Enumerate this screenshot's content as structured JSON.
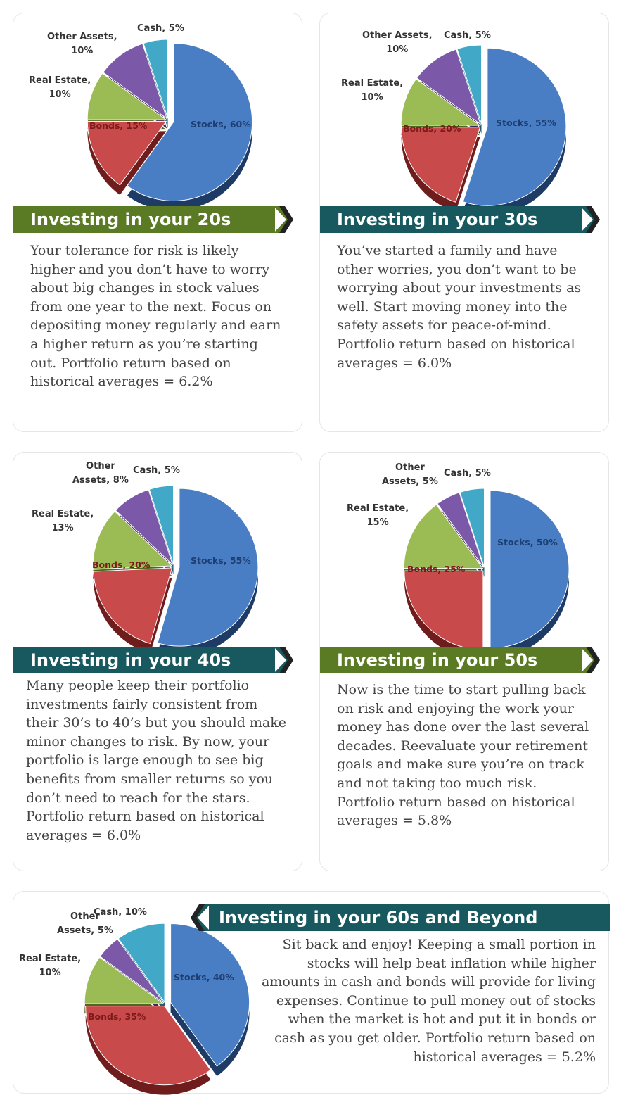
{
  "colors": {
    "stocks": "#4a7ec4",
    "bonds": "#c84a4a",
    "real_estate": "#9bbb54",
    "other_assets": "#7b59a8",
    "cash": "#41a8c8",
    "banner_green": "#5a7a24",
    "banner_teal": "#17595f",
    "shadow_green": "#dcdfc6",
    "shadow_teal": "#a9dde0"
  },
  "sections": [
    {
      "title": "Investing in your 20s",
      "description": "Your tolerance for risk is likely higher and you don’t have to worry about big changes in stock values from one year to the next. Focus on depositing money regularly and earn a higher return as you’re starting out. Portfolio return based on historical averages = 6.2%",
      "labels": {
        "stocks": "Stocks, 60%",
        "bonds": "Bonds, 15%",
        "real_estate_a": "Real Estate,",
        "real_estate_b": "10%",
        "other_a": "Other Assets,",
        "other_b": "10%",
        "cash": "Cash, 5%"
      }
    },
    {
      "title": "Investing in your 30s",
      "description": "You’ve started a family and have other worries, you don’t want to be worrying about your investments as well. Start moving money into the safety assets for peace-of-mind. Portfolio return based on historical averages = 6.0%",
      "labels": {
        "stocks": "Stocks, 55%",
        "bonds": "Bonds, 20%",
        "real_estate_a": "Real Estate,",
        "real_estate_b": "10%",
        "other_a": "Other Assets,",
        "other_b": "10%",
        "cash": "Cash, 5%"
      }
    },
    {
      "title": "Investing in your 40s",
      "description": "Many people keep their portfolio investments fairly consistent from their 30’s to 40’s but you should make minor changes to risk. By now, your portfolio is large enough to see big benefits from smaller returns so you don’t need to reach for the stars. Portfolio return based on historical averages = 6.0%",
      "labels": {
        "stocks": "Stocks, 55%",
        "bonds": "Bonds, 20%",
        "real_estate_a": "Real Estate,",
        "real_estate_b": "13%",
        "other_a": "Other",
        "other_b": "Assets, 8%",
        "cash": "Cash, 5%"
      }
    },
    {
      "title": "Investing in your 50s",
      "description": "Now is the time to start pulling back on risk and enjoying the work your money has done over the last several decades. Reevaluate your retirement goals and make sure you’re on track and not taking too much risk. Portfolio return based on historical averages = 5.8%",
      "labels": {
        "stocks": "Stocks, 50%",
        "bonds": "Bonds, 25%",
        "real_estate_a": "Real Estate,",
        "real_estate_b": "15%",
        "other_a": "Other",
        "other_b": "Assets, 5%",
        "cash": "Cash, 5%"
      }
    },
    {
      "title": "Investing in your 60s and Beyond",
      "description": "Sit back and enjoy! Keeping a small portion in stocks will help beat inflation while higher amounts in cash and bonds will provide for living expenses. Continue to pull money out of stocks when the market is hot and put it in bonds or cash as you get older. Portfolio return based on historical averages = 5.2%",
      "labels": {
        "stocks": "Stocks, 40%",
        "bonds": "Bonds, 35%",
        "real_estate_a": "Real Estate,",
        "real_estate_b": "10%",
        "other_a": "Other",
        "other_b": "Assets, 5%",
        "cash": "Cash, 10%"
      }
    }
  ],
  "chart_data": [
    {
      "type": "pie",
      "title": "Investing in your 20s",
      "categories": [
        "Stocks",
        "Bonds",
        "Real Estate",
        "Other Assets",
        "Cash"
      ],
      "values": [
        60,
        15,
        10,
        10,
        5
      ],
      "annotation": "Portfolio return based on historical averages = 6.2%"
    },
    {
      "type": "pie",
      "title": "Investing in your 30s",
      "categories": [
        "Stocks",
        "Bonds",
        "Real Estate",
        "Other Assets",
        "Cash"
      ],
      "values": [
        55,
        20,
        10,
        10,
        5
      ],
      "annotation": "Portfolio return based on historical averages = 6.0%"
    },
    {
      "type": "pie",
      "title": "Investing in your 40s",
      "categories": [
        "Stocks",
        "Bonds",
        "Real Estate",
        "Other Assets",
        "Cash"
      ],
      "values": [
        55,
        20,
        13,
        8,
        5
      ],
      "annotation": "Portfolio return based on historical averages = 6.0%"
    },
    {
      "type": "pie",
      "title": "Investing in your 50s",
      "categories": [
        "Stocks",
        "Bonds",
        "Real Estate",
        "Other Assets",
        "Cash"
      ],
      "values": [
        50,
        25,
        15,
        5,
        5
      ],
      "annotation": "Portfolio return based on historical averages = 5.8%"
    },
    {
      "type": "pie",
      "title": "Investing in your 60s and Beyond",
      "categories": [
        "Stocks",
        "Bonds",
        "Real Estate",
        "Other Assets",
        "Cash"
      ],
      "values": [
        40,
        35,
        10,
        5,
        10
      ],
      "annotation": "Portfolio return based on historical averages = 5.2%"
    }
  ]
}
